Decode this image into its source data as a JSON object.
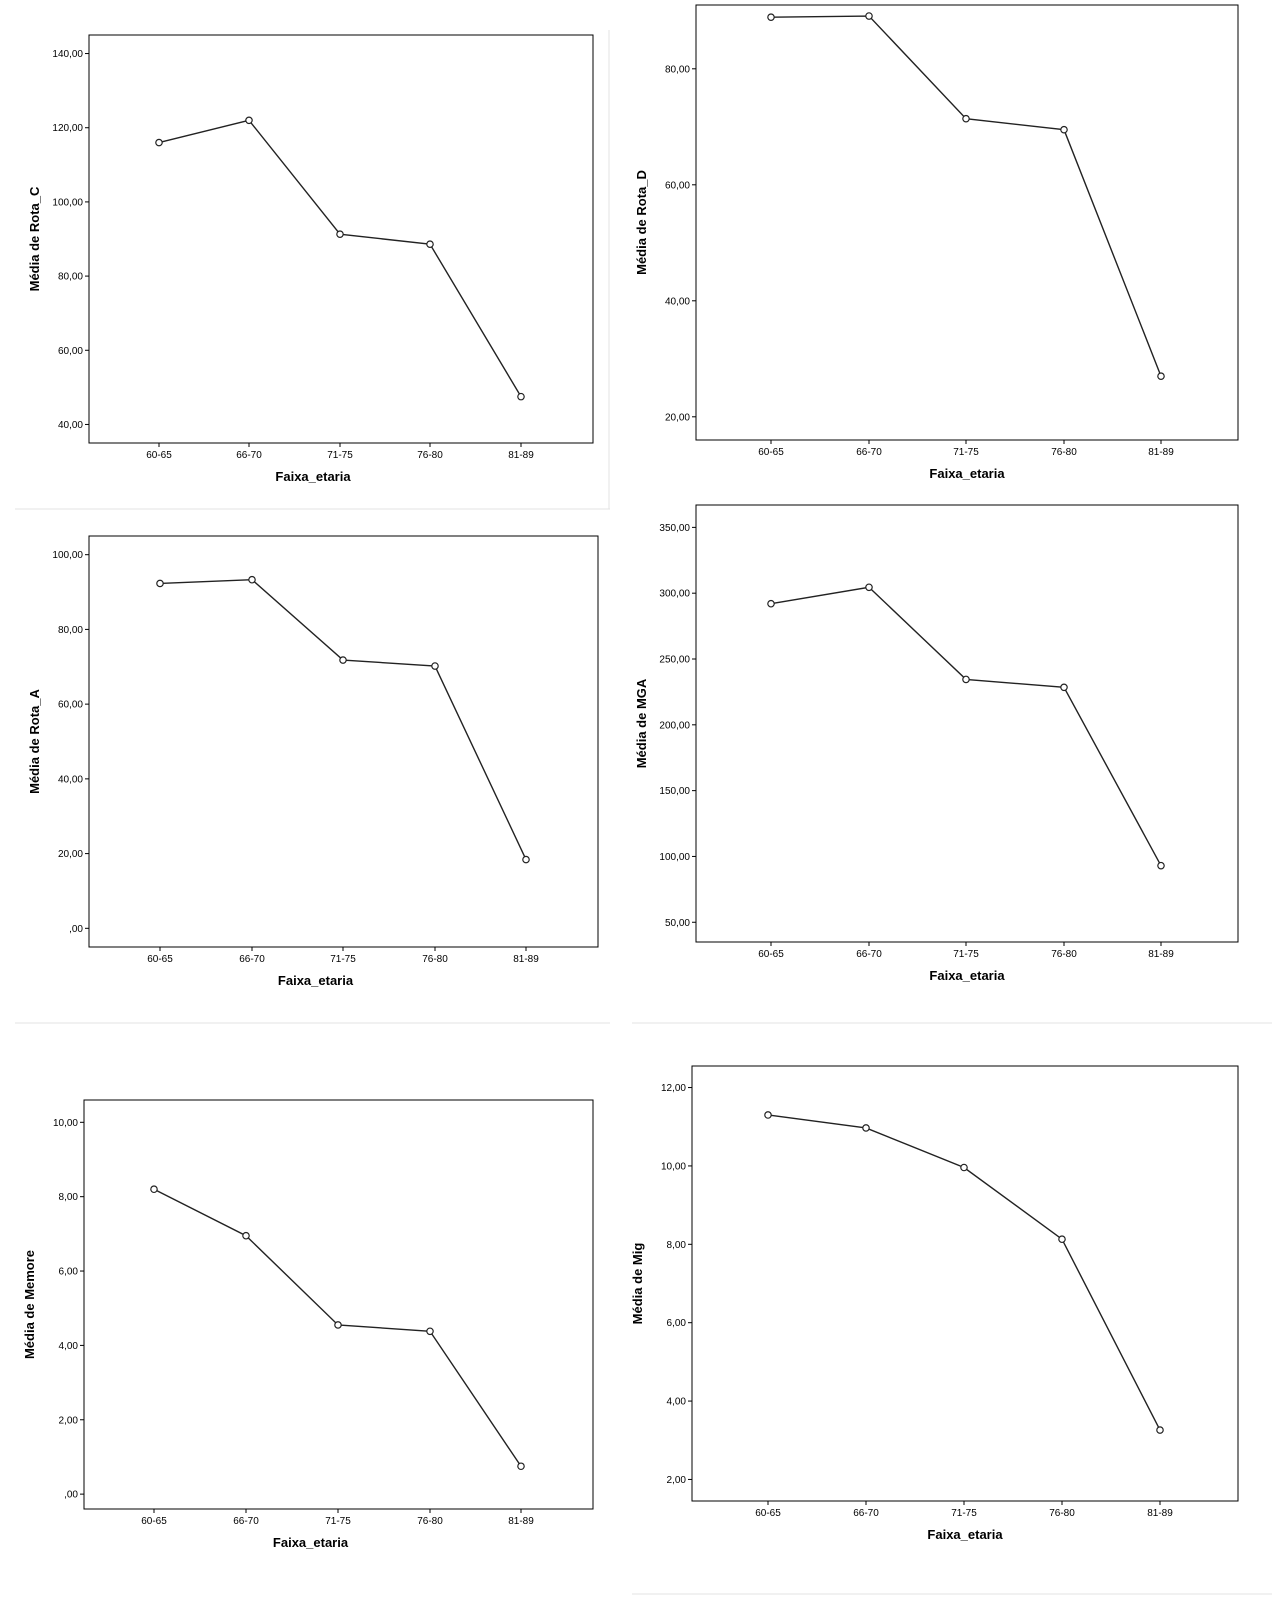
{
  "chart_data": [
    {
      "type": "line",
      "xlabel": "Faixa_etaria",
      "ylabel": "Média de Rota_C",
      "categories": [
        "60-65",
        "66-70",
        "71-75",
        "76-80",
        "81-89"
      ],
      "values": [
        116.0,
        122.0,
        91.3,
        88.6,
        47.5
      ],
      "ylim": [
        35,
        145
      ],
      "yticks": [
        40,
        60,
        80,
        100,
        120,
        140
      ],
      "ytick_labels": [
        "40,00",
        "60,00",
        "80,00",
        "100,00",
        "120,00",
        "140,00"
      ],
      "grid": false,
      "legend": "none"
    },
    {
      "type": "line",
      "xlabel": "Faixa_etaria",
      "ylabel": "Média de Rota_D",
      "categories": [
        "60-65",
        "66-70",
        "71-75",
        "76-80",
        "81-89"
      ],
      "values": [
        88.9,
        89.1,
        71.4,
        69.5,
        27.0
      ],
      "ylim": [
        16,
        91
      ],
      "yticks": [
        20,
        40,
        60,
        80
      ],
      "ytick_labels": [
        "20,00",
        "40,00",
        "60,00",
        "80,00"
      ],
      "grid": false,
      "legend": "none"
    },
    {
      "type": "line",
      "xlabel": "Faixa_etaria",
      "ylabel": "Média de Rota_A",
      "categories": [
        "60-65",
        "66-70",
        "71-75",
        "76-80",
        "81-89"
      ],
      "values": [
        92.3,
        93.3,
        71.8,
        70.2,
        18.4
      ],
      "ylim": [
        -5,
        105
      ],
      "yticks": [
        0,
        20,
        40,
        60,
        80,
        100
      ],
      "ytick_labels": [
        ",00",
        "20,00",
        "40,00",
        "60,00",
        "80,00",
        "100,00"
      ],
      "grid": false,
      "legend": "none"
    },
    {
      "type": "line",
      "xlabel": "Faixa_etaria",
      "ylabel": "Média de MGA",
      "categories": [
        "60-65",
        "66-70",
        "71-75",
        "76-80",
        "81-89"
      ],
      "values": [
        292.0,
        304.5,
        234.5,
        228.5,
        93.0
      ],
      "ylim": [
        35,
        367
      ],
      "yticks": [
        50,
        100,
        150,
        200,
        250,
        300,
        350
      ],
      "ytick_labels": [
        "50,00",
        "100,00",
        "150,00",
        "200,00",
        "250,00",
        "300,00",
        "350,00"
      ],
      "grid": false,
      "legend": "none"
    },
    {
      "type": "line",
      "xlabel": "Faixa_etaria",
      "ylabel": "Média de Memore",
      "categories": [
        "60-65",
        "66-70",
        "71-75",
        "76-80",
        "81-89"
      ],
      "values": [
        8.2,
        6.95,
        4.55,
        4.38,
        0.75
      ],
      "ylim": [
        -0.4,
        10.6
      ],
      "yticks": [
        0,
        2,
        4,
        6,
        8,
        10
      ],
      "ytick_labels": [
        ",00",
        "2,00",
        "4,00",
        "6,00",
        "8,00",
        "10,00"
      ],
      "grid": false,
      "legend": "none"
    },
    {
      "type": "line",
      "xlabel": "Faixa_etaria",
      "ylabel": "Média de Mig",
      "categories": [
        "60-65",
        "66-70",
        "71-75",
        "76-80",
        "81-89"
      ],
      "values": [
        11.3,
        10.97,
        9.96,
        8.13,
        3.26
      ],
      "ylim": [
        1.45,
        12.55
      ],
      "yticks": [
        2,
        4,
        6,
        8,
        10,
        12
      ],
      "ytick_labels": [
        "2,00",
        "4,00",
        "6,00",
        "8,00",
        "10,00",
        "12,00"
      ],
      "grid": false,
      "legend": "none"
    }
  ]
}
